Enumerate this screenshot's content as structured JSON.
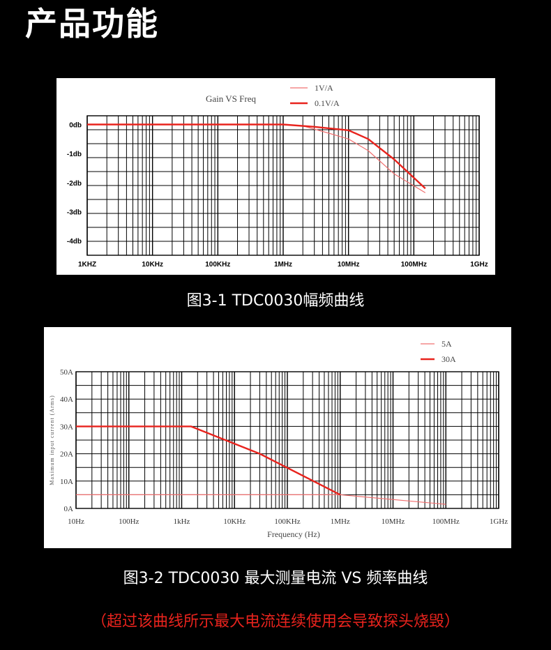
{
  "page_title": "产品功能",
  "captions": {
    "chart1": "图3-1 TDC0030幅频曲线",
    "chart2": "图3-2 TDC0030 最大测量电流 VS 频率曲线"
  },
  "warning": "（超过该曲线所示最大电流连续使用会导致探头烧毁）",
  "colors": {
    "background": "#000000",
    "thin_series": "#f07070",
    "thick_series": "#e8231d",
    "warning": "#e8231d"
  },
  "chart_data": [
    {
      "type": "line",
      "title": "Gain VS Freq",
      "x_scale": "log",
      "xlim": [
        1000,
        1000000000
      ],
      "ylim": [
        -4.5,
        0.3
      ],
      "x_tick_values": [
        1000,
        10000,
        100000,
        1000000,
        10000000,
        100000000,
        1000000000
      ],
      "x_tick_labels": [
        "1KHZ",
        "10KHz",
        "100KHz",
        "1MHz",
        "10MHz",
        "100MHz",
        "1GHz"
      ],
      "y_tick_values": [
        0,
        -1,
        -2,
        -3,
        -4
      ],
      "y_tick_labels": [
        "0db",
        "-1db",
        "-2db",
        "-3db",
        "-4db"
      ],
      "grid": true,
      "legend_position": "top",
      "series": [
        {
          "name": "1V/A",
          "style": "thin",
          "x": [
            1000,
            1000000,
            2000000,
            5000000,
            10000000,
            20000000,
            50000000,
            150000000
          ],
          "y": [
            0,
            0,
            -0.05,
            -0.3,
            -0.5,
            -0.9,
            -1.7,
            -2.35
          ]
        },
        {
          "name": "0.1V/A",
          "style": "thick",
          "x": [
            1000,
            1000000,
            3000000,
            10000000,
            20000000,
            50000000,
            150000000
          ],
          "y": [
            0,
            0,
            -0.08,
            -0.2,
            -0.5,
            -1.2,
            -2.2
          ]
        }
      ]
    },
    {
      "type": "line",
      "title": "",
      "xlabel": "Frequency (Hz)",
      "ylabel": "Maximum input current (Arms)",
      "x_scale": "log",
      "xlim": [
        10,
        1000000000
      ],
      "ylim": [
        0,
        50
      ],
      "x_tick_values": [
        10,
        100,
        1000,
        10000,
        100000,
        1000000,
        10000000,
        100000000,
        1000000000
      ],
      "x_tick_labels": [
        "10Hz",
        "100Hz",
        "1kHz",
        "10KHz",
        "100KHz",
        "1MHz",
        "10MHz",
        "100MHz",
        "1GHz"
      ],
      "y_tick_values": [
        50,
        40,
        30,
        20,
        10,
        0
      ],
      "y_tick_labels": [
        "50A",
        "40A",
        "30A",
        "20A",
        "10A",
        "0A"
      ],
      "grid": true,
      "legend_position": "top-right",
      "series": [
        {
          "name": "5A",
          "style": "thin",
          "x": [
            10,
            1000000,
            100000000
          ],
          "y": [
            5,
            5,
            1.5
          ]
        },
        {
          "name": "30A",
          "style": "thick",
          "x": [
            10,
            1500,
            30000,
            1000000
          ],
          "y": [
            30,
            30,
            20,
            5
          ]
        }
      ]
    }
  ]
}
